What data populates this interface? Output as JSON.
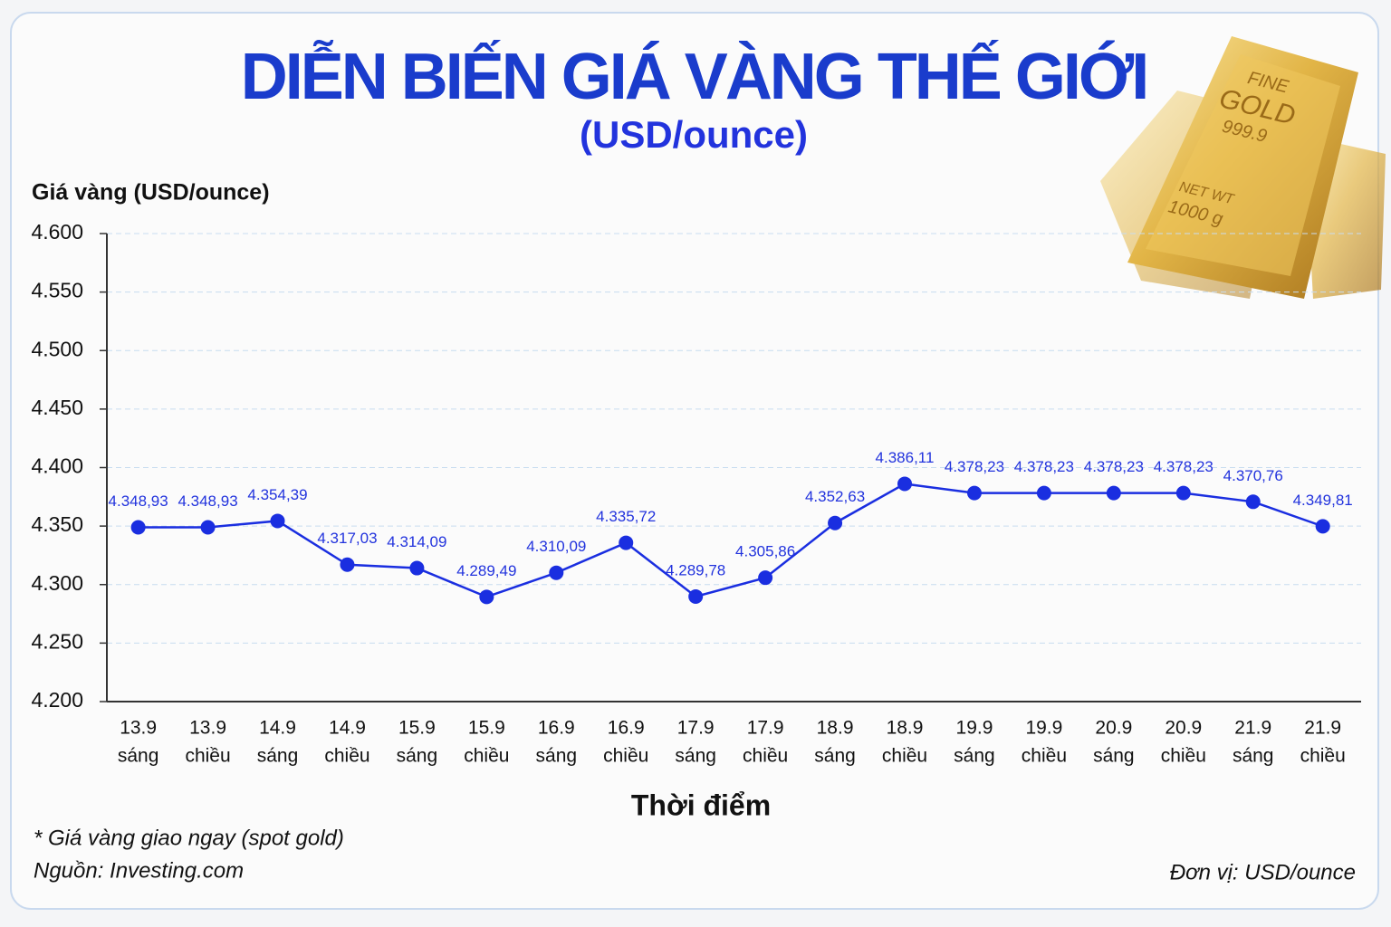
{
  "chart_data": {
    "type": "line",
    "title": "DIỄN BIẾN GIÁ VÀNG THẾ GIỚI",
    "subtitle": "(USD/ounce)",
    "y_label": "Giá vàng (USD/ounce)",
    "x_label": "Thời điểm",
    "notes": [
      "* Giá vàng giao ngay (spot gold)",
      "Nguồn: Investing.com"
    ],
    "unit_note": "Đơn vị: USD/ounce",
    "image_text": [
      "FINE",
      "GOLD",
      "999.9",
      "NET WT",
      "1000 g"
    ],
    "categories": [
      [
        "13.9",
        "sáng"
      ],
      [
        "13.9",
        "chiều"
      ],
      [
        "14.9",
        "sáng"
      ],
      [
        "14.9",
        "chiều"
      ],
      [
        "15.9",
        "sáng"
      ],
      [
        "15.9",
        "chiều"
      ],
      [
        "16.9",
        "sáng"
      ],
      [
        "16.9",
        "chiều"
      ],
      [
        "17.9",
        "sáng"
      ],
      [
        "17.9",
        "chiều"
      ],
      [
        "18.9",
        "sáng"
      ],
      [
        "18.9",
        "chiều"
      ],
      [
        "19.9",
        "sáng"
      ],
      [
        "19.9",
        "chiều"
      ],
      [
        "20.9",
        "sáng"
      ],
      [
        "20.9",
        "chiều"
      ],
      [
        "21.9",
        "sáng"
      ],
      [
        "21.9",
        "chiều"
      ]
    ],
    "series": [
      {
        "name": "Giá vàng",
        "color": "#1a2ee0",
        "values": [
          4348.93,
          4348.93,
          4354.39,
          4317.03,
          4314.09,
          4289.49,
          4310.09,
          4335.72,
          4289.78,
          4305.86,
          4352.63,
          4386.11,
          4378.23,
          4378.23,
          4378.23,
          4378.23,
          4370.76,
          4349.81
        ],
        "value_labels": [
          "4.348,93",
          "4.348,93",
          "4.354,39",
          "4.317,03",
          "4.314,09",
          "4.289,49",
          "4.310,09",
          "4.335,72",
          "4.289,78",
          "4.305,86",
          "4.352,63",
          "4.386,11",
          "4.378,23",
          "4.378,23",
          "4.378,23",
          "4.378,23",
          "4.370,76",
          "4.349,81"
        ]
      }
    ],
    "ylim": [
      4200,
      4600
    ],
    "yticks": [
      {
        "value": 4200,
        "label": "4.200"
      },
      {
        "value": 4250,
        "label": "4.250"
      },
      {
        "value": 4300,
        "label": "4.300"
      },
      {
        "value": 4350,
        "label": "4.350"
      },
      {
        "value": 4400,
        "label": "4.400"
      },
      {
        "value": 4450,
        "label": "4.450"
      },
      {
        "value": 4500,
        "label": "4.500"
      },
      {
        "value": 4550,
        "label": "4.550"
      },
      {
        "value": 4600,
        "label": "4.600"
      }
    ],
    "grid": true
  }
}
